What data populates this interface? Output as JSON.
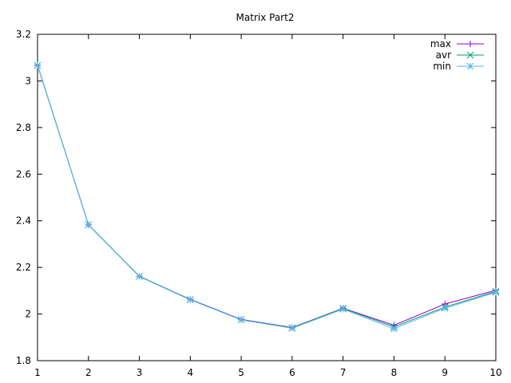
{
  "chart_data": {
    "type": "line",
    "title": "Matrix Part2",
    "xlabel": "",
    "ylabel": "",
    "x": [
      1,
      2,
      3,
      4,
      5,
      6,
      7,
      8,
      9,
      10
    ],
    "xlim": [
      1,
      10
    ],
    "ylim": [
      1.8,
      3.2
    ],
    "xticks": [
      "1",
      "2",
      "3",
      "4",
      "5",
      "6",
      "7",
      "8",
      "9",
      "10"
    ],
    "yticks": [
      "1.8",
      "2",
      "2.2",
      "2.4",
      "2.6",
      "2.8",
      "3",
      "3.2"
    ],
    "grid": false,
    "legend_position": "top-right",
    "series": [
      {
        "name": "max",
        "color": "#9400d3",
        "marker": "plus",
        "values": [
          3.068,
          2.383,
          2.162,
          2.063,
          1.977,
          1.942,
          2.025,
          1.952,
          2.043,
          2.102
        ]
      },
      {
        "name": "avr",
        "color": "#009e73",
        "marker": "cross",
        "values": [
          3.067,
          2.383,
          2.162,
          2.062,
          1.976,
          1.941,
          2.024,
          1.945,
          2.03,
          2.097
        ]
      },
      {
        "name": "min",
        "color": "#56b4e9",
        "marker": "star",
        "values": [
          3.066,
          2.382,
          2.161,
          2.061,
          1.975,
          1.939,
          2.021,
          1.937,
          2.025,
          2.093
        ]
      }
    ]
  }
}
